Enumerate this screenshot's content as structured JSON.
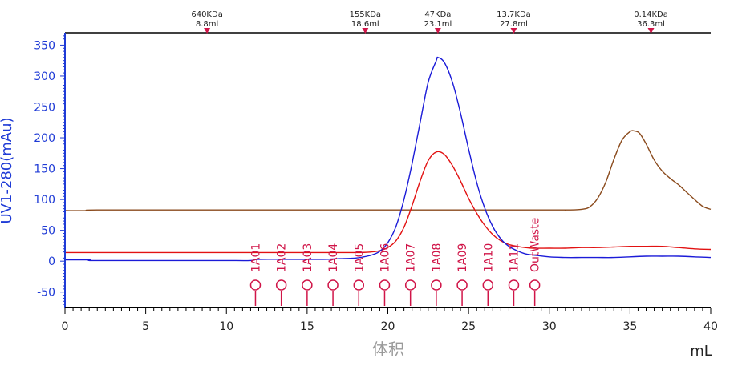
{
  "chart_data": {
    "type": "line",
    "xlabel": "mL",
    "xlabel_secondary": "体积",
    "ylabel": "UV1-280(mAu)",
    "xlim": [
      0,
      40
    ],
    "ylim": [
      -75,
      370
    ],
    "x_ticks": [
      0,
      5,
      10,
      15,
      20,
      25,
      30,
      35,
      40
    ],
    "y_ticks": [
      -50,
      0,
      50,
      100,
      150,
      200,
      250,
      300,
      350
    ],
    "grid": false,
    "colors": {
      "uv280": "#1b1bd8",
      "red_trace": "#e21212",
      "brown_trace": "#8a4a1c",
      "fraction": "#d01548",
      "y_axis": "#1f3bd6",
      "axis": "#000000"
    },
    "mw_markers": [
      {
        "x": 8.8,
        "kda": "640KDa",
        "ml": "8.8ml"
      },
      {
        "x": 18.6,
        "kda": "155KDa",
        "ml": "18.6ml"
      },
      {
        "x": 23.1,
        "kda": "47KDa",
        "ml": "23.1ml"
      },
      {
        "x": 27.8,
        "kda": "13.7KDa",
        "ml": "27.8ml"
      },
      {
        "x": 36.3,
        "kda": "0.14KDa",
        "ml": "36.3ml"
      }
    ],
    "fractions": [
      {
        "label": "1A01",
        "x": 11.8
      },
      {
        "label": "1A02",
        "x": 13.4
      },
      {
        "label": "1A03",
        "x": 15.0
      },
      {
        "label": "1A04",
        "x": 16.6
      },
      {
        "label": "1A05",
        "x": 18.2
      },
      {
        "label": "1A06",
        "x": 19.8
      },
      {
        "label": "1A07",
        "x": 21.4
      },
      {
        "label": "1A08",
        "x": 23.0
      },
      {
        "label": "1A09",
        "x": 24.6
      },
      {
        "label": "1A10",
        "x": 26.2
      },
      {
        "label": "1A11",
        "x": 27.8
      },
      {
        "label": "OutWaste",
        "x": 29.1
      }
    ],
    "series": [
      {
        "color": "#1b1bd8",
        "x": [
          0,
          1.5,
          1.6,
          4,
          8,
          10,
          11.5,
          12,
          14,
          16,
          17,
          18,
          18.5,
          19,
          19.5,
          20,
          20.5,
          21,
          21.5,
          22,
          22.5,
          23,
          23.1,
          23.5,
          24,
          24.5,
          25,
          25.5,
          26,
          26.5,
          27,
          27.5,
          28,
          28.5,
          29,
          30,
          31,
          32,
          33,
          34,
          35,
          36,
          37,
          38,
          39,
          40
        ],
        "y": [
          2,
          2,
          1,
          1,
          1,
          1,
          1,
          3,
          3,
          3,
          4,
          5,
          7,
          10,
          16,
          30,
          56,
          100,
          158,
          225,
          290,
          325,
          330,
          322,
          290,
          240,
          182,
          128,
          86,
          56,
          36,
          24,
          17,
          12,
          10,
          7,
          6,
          6,
          6,
          6,
          7,
          8,
          8,
          8,
          7,
          6
        ]
      },
      {
        "color": "#e21212",
        "x": [
          0,
          10,
          15,
          18,
          19,
          19.5,
          20,
          20.5,
          21,
          21.5,
          22,
          22.5,
          23,
          23.5,
          24,
          24.5,
          25,
          25.5,
          26,
          26.5,
          27,
          27.5,
          28,
          28.5,
          29,
          30,
          31,
          32,
          33,
          34,
          35,
          36,
          37,
          38,
          39,
          40
        ],
        "y": [
          14,
          14,
          14,
          14,
          15,
          17,
          22,
          33,
          55,
          90,
          130,
          163,
          177,
          173,
          155,
          130,
          102,
          78,
          58,
          43,
          33,
          27,
          24,
          22,
          21,
          21,
          21,
          22,
          22,
          23,
          24,
          24,
          24,
          22,
          20,
          19
        ]
      },
      {
        "color": "#8a4a1c",
        "x": [
          0,
          1.5,
          2,
          10,
          20,
          30,
          31,
          32,
          32.5,
          33,
          33.5,
          34,
          34.5,
          35,
          35.3,
          35.6,
          36,
          36.5,
          37,
          37.5,
          38,
          38.5,
          39,
          39.5,
          40
        ],
        "y": [
          82,
          82,
          83,
          83,
          83,
          83,
          83,
          84,
          88,
          102,
          128,
          165,
          196,
          210,
          211,
          207,
          190,
          164,
          146,
          134,
          124,
          112,
          100,
          89,
          84
        ]
      }
    ]
  }
}
